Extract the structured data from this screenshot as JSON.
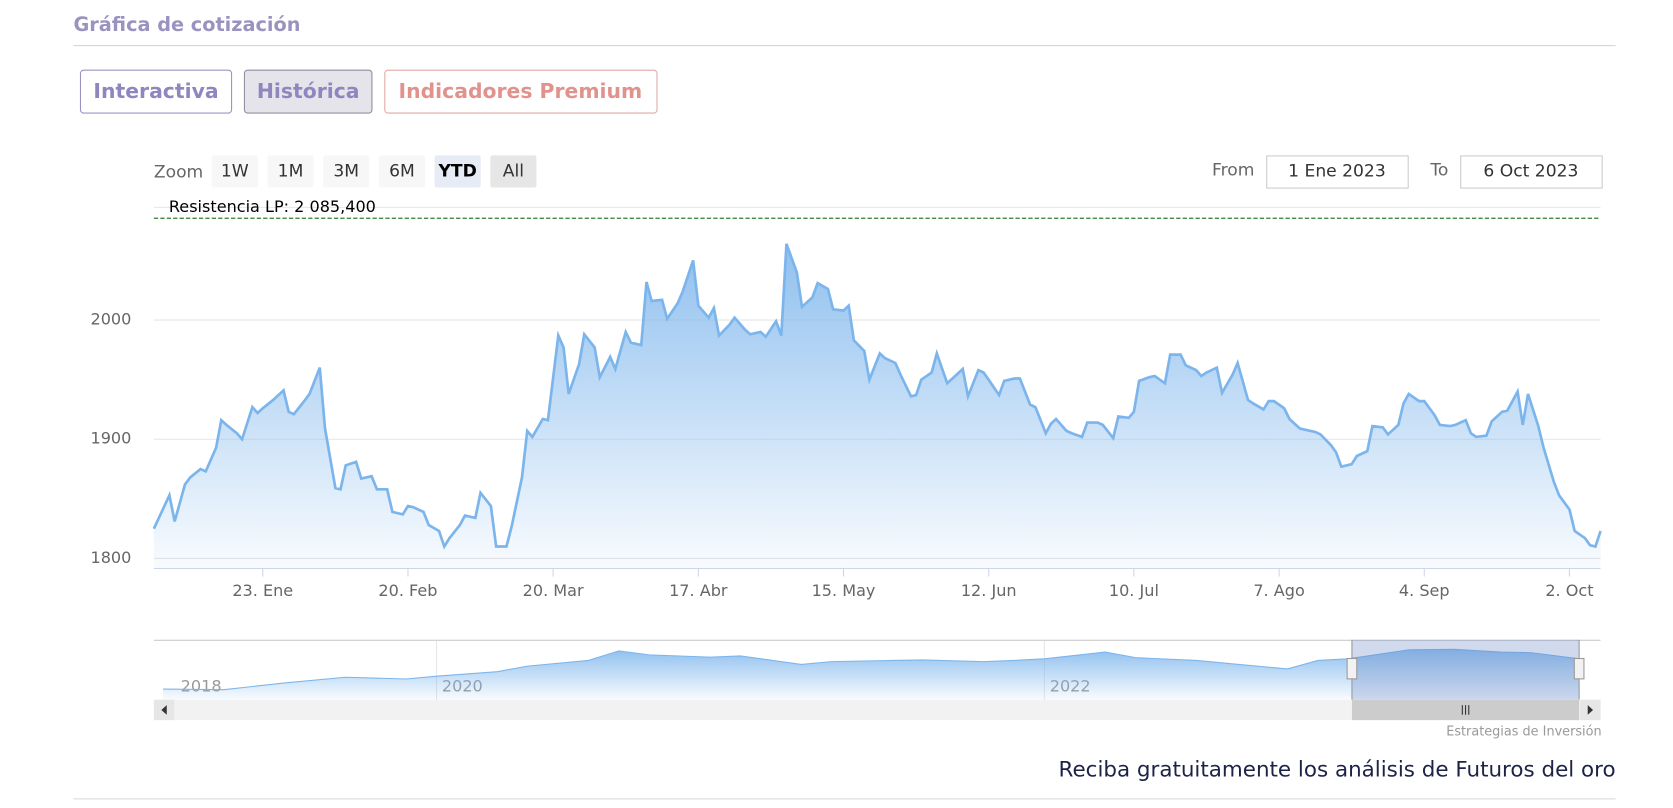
{
  "header": {
    "title": "Gráfica de cotización"
  },
  "tabs": [
    "Interactiva",
    "Histórica",
    "Indicadores Premium"
  ],
  "range_selector": {
    "label": "Zoom",
    "buttons": [
      "1W",
      "1M",
      "3M",
      "6M",
      "YTD",
      "All"
    ],
    "from_label": "From",
    "from": "1 Ene 2023",
    "to_label": "To",
    "to": "6 Oct 2023"
  },
  "chart_data": [
    {
      "type": "area",
      "x": [
        2,
        5,
        6,
        8,
        9,
        11,
        12,
        14,
        15,
        16,
        18,
        19,
        21,
        22,
        23,
        25,
        27,
        28,
        29,
        31,
        32,
        34,
        35,
        37,
        38,
        39,
        41,
        42,
        44,
        45,
        47,
        48,
        50,
        51,
        52,
        54,
        55,
        57,
        58,
        59,
        61,
        62,
        64,
        65,
        67,
        68,
        70,
        71,
        73,
        74,
        75,
        77,
        78,
        80,
        81,
        82,
        84,
        85,
        87,
        88,
        90,
        91,
        93,
        94,
        96,
        97,
        98,
        100,
        101,
        103,
        104,
        106,
        107,
        109,
        110,
        111,
        113,
        114,
        116,
        117,
        119,
        120,
        122,
        123,
        124,
        126,
        127,
        129,
        130,
        132,
        133,
        135,
        136,
        137,
        139,
        140,
        142,
        143,
        145,
        146,
        148,
        149,
        150,
        152,
        153,
        155,
        156,
        158,
        159,
        161,
        162,
        163,
        165,
        166,
        168,
        169,
        171,
        172,
        174,
        175,
        176,
        178,
        179,
        181,
        182,
        184,
        185,
        187,
        188,
        190,
        191,
        192,
        194,
        195,
        197,
        198,
        200,
        201,
        203,
        204,
        205,
        207,
        208,
        210,
        211,
        213,
        214,
        216,
        217,
        218,
        220,
        221,
        223,
        224,
        226,
        227,
        229,
        230,
        231,
        233,
        234,
        236,
        237,
        239,
        240,
        242,
        243,
        244,
        246,
        247,
        249,
        250,
        252,
        253,
        255,
        256,
        257,
        259,
        260,
        262,
        263,
        265,
        266,
        267,
        269,
        270,
        272,
        273,
        275,
        276,
        278,
        279,
        280,
        281
      ],
      "series": [
        {
          "color": "#7cb5ec",
          "values": [
            1825,
            1853,
            1831,
            1862,
            1868,
            1875,
            1873,
            1893,
            1916,
            1912,
            1905,
            1900,
            1927,
            1922,
            1926,
            1933,
            1941,
            1923,
            1921,
            1932,
            1938,
            1960,
            1909,
            1859,
            1858,
            1878,
            1881,
            1867,
            1869,
            1858,
            1858,
            1839,
            1837,
            1844,
            1843,
            1839,
            1828,
            1823,
            1810,
            1817,
            1828,
            1836,
            1834,
            1855,
            1844,
            1810,
            1810,
            1827,
            1868,
            1907,
            1902,
            1917,
            1916,
            1987,
            1977,
            1938,
            1963,
            1988,
            1977,
            1952,
            1969,
            1959,
            1990,
            1981,
            1979,
            2032,
            2016,
            2017,
            2001,
            2014,
            2024,
            2050,
            2012,
            2002,
            2010,
            1987,
            1996,
            2002,
            1992,
            1988,
            1990,
            1986,
            1999,
            1987,
            2064,
            2040,
            2011,
            2019,
            2031,
            2026,
            2009,
            2008,
            2012,
            1983,
            1974,
            1950,
            1972,
            1968,
            1964,
            1954,
            1936,
            1937,
            1950,
            1956,
            1972,
            1947,
            1951,
            1959,
            1936,
            1958,
            1956,
            1950,
            1937,
            1949,
            1951,
            1951,
            1929,
            1927,
            1905,
            1913,
            1917,
            1907,
            1905,
            1902,
            1914,
            1914,
            1912,
            1901,
            1919,
            1918,
            1923,
            1949,
            1952,
            1953,
            1947,
            1971,
            1971,
            1962,
            1958,
            1953,
            1956,
            1960,
            1939,
            1954,
            1964,
            1933,
            1930,
            1925,
            1932,
            1932,
            1926,
            1917,
            1909,
            1908,
            1906,
            1904,
            1895,
            1889,
            1877,
            1879,
            1886,
            1890,
            1911,
            1910,
            1904,
            1912,
            1930,
            1938,
            1932,
            1932,
            1920,
            1912,
            1911,
            1912,
            1916,
            1905,
            1902,
            1903,
            1915,
            1923,
            1924,
            1940,
            1912,
            1938,
            1911,
            1893,
            1864,
            1853,
            1841,
            1823,
            1817,
            1811,
            1810,
            1823
          ]
        }
      ],
      "xlim": [
        2,
        281
      ],
      "xticks": [
        {
          "value": 23,
          "label": "23. Ene"
        },
        {
          "value": 51,
          "label": "20. Feb"
        },
        {
          "value": 79,
          "label": "20. Mar"
        },
        {
          "value": 107,
          "label": "17. Abr"
        },
        {
          "value": 135,
          "label": "15. May"
        },
        {
          "value": 163,
          "label": "12. Jun"
        },
        {
          "value": 191,
          "label": "10. Jul"
        },
        {
          "value": 219,
          "label": "7. Ago"
        },
        {
          "value": 247,
          "label": "4. Sep"
        },
        {
          "value": 275,
          "label": "2. Oct"
        }
      ],
      "ylim": [
        1792,
        2095
      ],
      "yticks": [
        1800,
        1900,
        2000
      ],
      "grid": true,
      "annotations": [
        {
          "value": 2085.4,
          "label": "Resistencia LP: 2 085,400",
          "color": "#2e7d32"
        }
      ]
    },
    {
      "type": "area",
      "x": [
        2019.1,
        2019.3,
        2019.5,
        2019.7,
        2019.9,
        2020.0,
        2020.2,
        2020.3,
        2020.5,
        2020.6,
        2020.7,
        2020.9,
        2021.0,
        2021.2,
        2021.3,
        2021.5,
        2021.6,
        2021.8,
        2021.9,
        2022.0,
        2022.2,
        2022.3,
        2022.5,
        2022.6,
        2022.8,
        2022.9,
        2023.0,
        2023.2,
        2023.35,
        2023.5,
        2023.6,
        2023.76
      ],
      "series": [
        {
          "color": "#7cb5ec",
          "values": [
            1290,
            1280,
            1400,
            1500,
            1470,
            1520,
            1600,
            1700,
            1800,
            1970,
            1900,
            1860,
            1880,
            1730,
            1780,
            1800,
            1810,
            1780,
            1800,
            1830,
            1950,
            1850,
            1800,
            1750,
            1650,
            1800,
            1830,
            1990,
            2000,
            1950,
            1940,
            1830
          ]
        }
      ],
      "xlim": [
        2019.07,
        2023.83
      ],
      "xticks": [
        2018,
        2020,
        2022
      ],
      "ylim": [
        1100,
        2150
      ]
    }
  ],
  "credits": "Estrategias de Inversión",
  "footer_link": "Reciba gratuitamente los análisis de Futuros del oro"
}
